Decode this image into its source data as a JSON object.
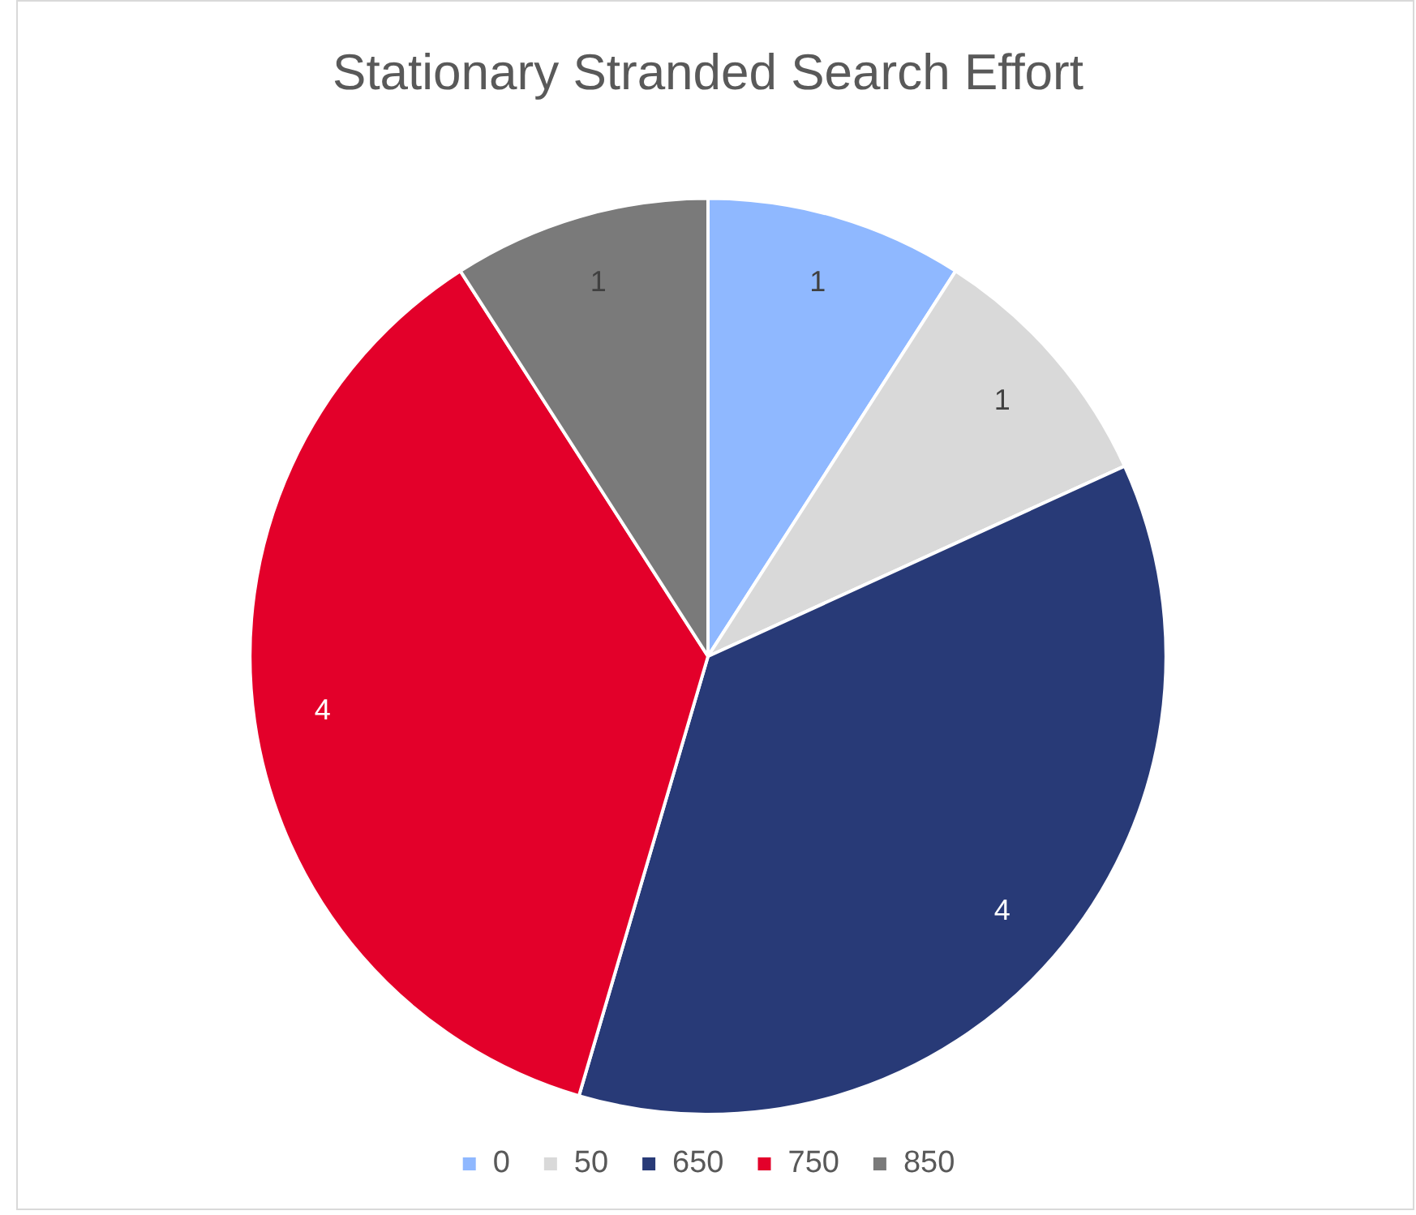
{
  "chart_data": {
    "type": "pie",
    "title": "Stationary Stranded Search Effort",
    "categories": [
      "0",
      "50",
      "650",
      "750",
      "850"
    ],
    "values": [
      1,
      1,
      4,
      4,
      1
    ],
    "colors": [
      "#8fb8ff",
      "#d9d9d9",
      "#283a77",
      "#e3002a",
      "#7a7a7a"
    ],
    "data_labels": true,
    "legend": "bottom"
  }
}
